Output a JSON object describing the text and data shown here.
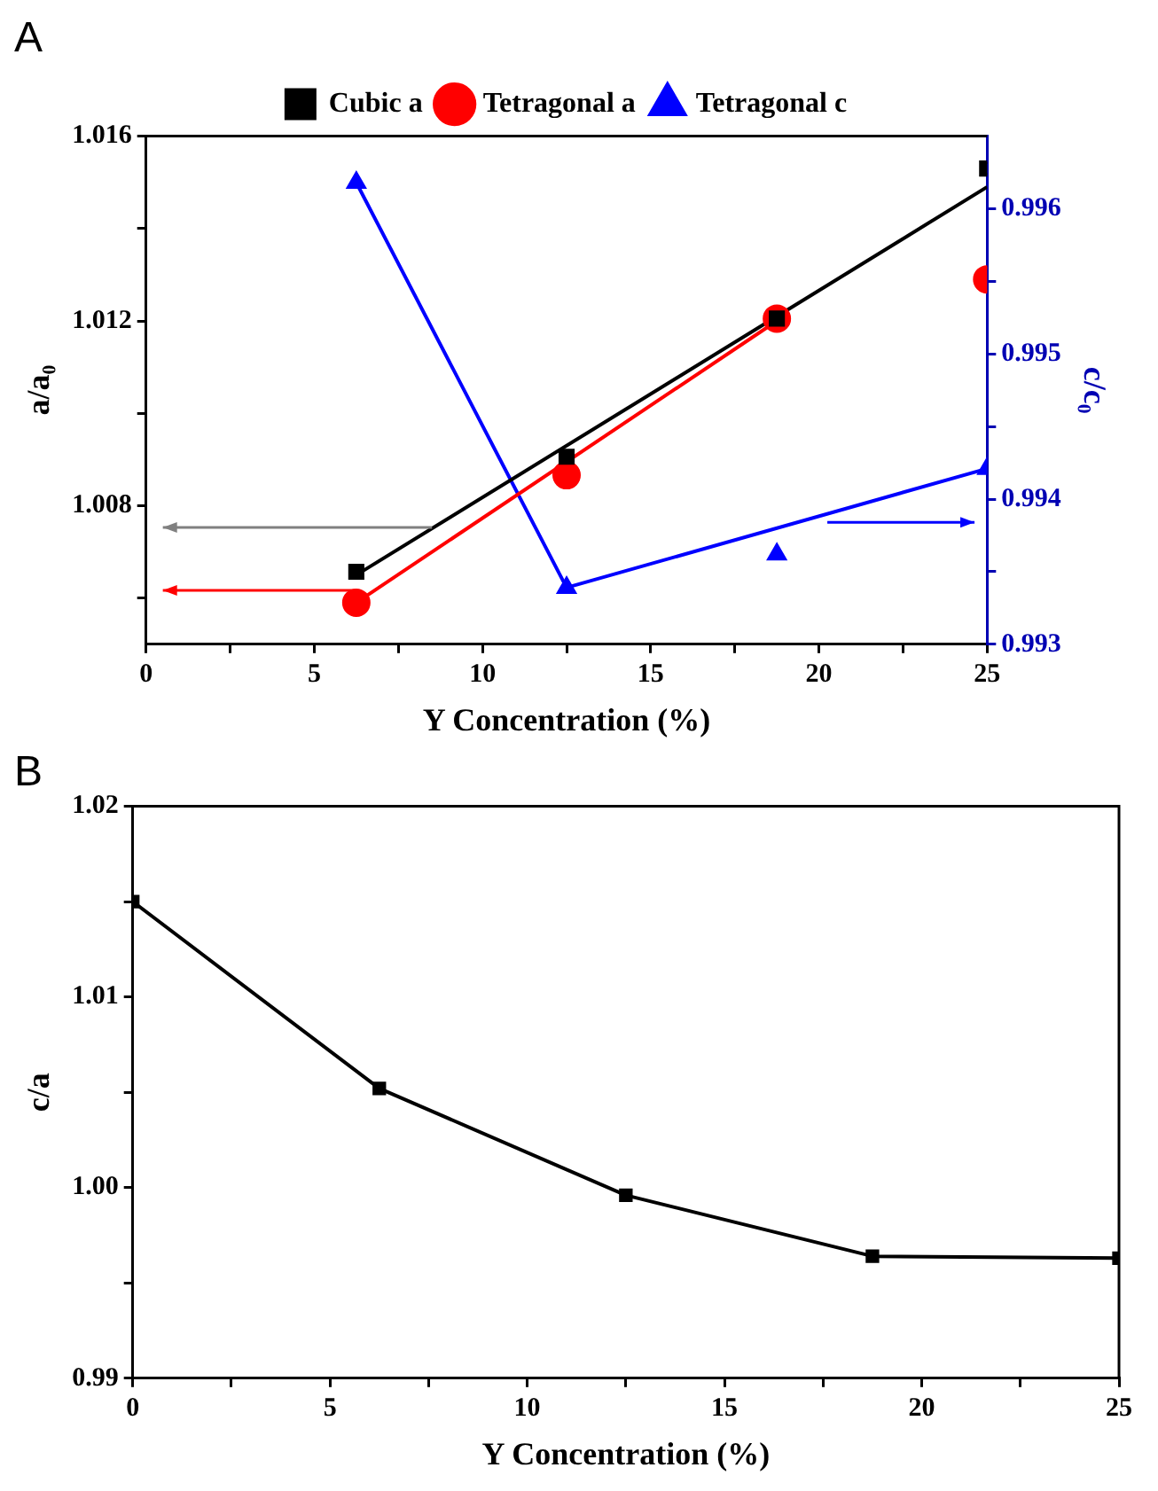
{
  "chart_data": [
    {
      "type": "scatter",
      "title": "A",
      "xlabel": "Y Concentration (%)",
      "ylabel": "a/a₀",
      "y2label": "c/c₀",
      "x": [
        6.25,
        12.5,
        18.75,
        25
      ],
      "xlim": [
        0,
        25
      ],
      "xticks": [
        0,
        {
          "value": 2.5,
          "label": null
        },
        5,
        {
          "value": 7.5,
          "label": null
        },
        10,
        {
          "value": 12.5,
          "label": null
        },
        15,
        {
          "value": 17.5,
          "label": null
        },
        20,
        {
          "value": 22.5,
          "label": null
        },
        25
      ],
      "ylim": [
        1.005,
        1.016
      ],
      "yticks": [
        {
          "value": 1.006,
          "label": null
        },
        1.008,
        {
          "value": 1.01,
          "label": null
        },
        1.012,
        {
          "value": 1.014,
          "label": null
        },
        1.016
      ],
      "y2lim": [
        0.993,
        0.9965
      ],
      "y2ticks": [
        0.993,
        {
          "value": 0.9935,
          "label": null
        },
        0.994,
        {
          "value": 0.9945,
          "label": null
        },
        0.995,
        {
          "value": 0.9955,
          "label": null
        },
        0.996
      ],
      "legend": "top",
      "grid": false,
      "series": [
        {
          "name": "Cubic a",
          "type": "scatter",
          "marker": "square",
          "color": "#000000",
          "values": [
            1.00657,
            1.00906,
            1.01205,
            1.0153
          ]
        },
        {
          "name": "Tetragonal a",
          "type": "scatter",
          "marker": "circle",
          "color": "#ff0000",
          "values": [
            1.0059,
            1.00866,
            1.01205,
            1.0129
          ]
        },
        {
          "name": "Tetragonal c",
          "type": "scatter",
          "marker": "triangle",
          "color": "#0000ff",
          "axis": "y2",
          "values": [
            0.99618,
            0.99339,
            0.99362,
            0.99421
          ]
        },
        {
          "type": "line",
          "marker": "none",
          "color": "#000000",
          "x": [
            6.25,
            25
          ],
          "values": [
            1.0065,
            1.0149
          ]
        },
        {
          "type": "line",
          "marker": "none",
          "color": "#ff0000",
          "x": [
            6.25,
            18.75
          ],
          "values": [
            1.0059,
            1.012
          ]
        },
        {
          "type": "line",
          "marker": "none",
          "color": "#0000ff",
          "axis": "y2",
          "x": [
            6.25,
            12.5,
            25
          ],
          "values": [
            0.99618,
            0.99339,
            0.99421
          ]
        }
      ]
    },
    {
      "type": "line",
      "title": "B",
      "xlabel": "Y Concentration (%)",
      "ylabel": "c/a",
      "x": [
        0,
        6.25,
        12.5,
        18.75,
        25
      ],
      "xlim": [
        0,
        25
      ],
      "xticks": [
        0,
        {
          "value": 2.5,
          "label": null
        },
        5,
        {
          "value": 7.5,
          "label": null
        },
        10,
        {
          "value": 12.5,
          "label": null
        },
        15,
        {
          "value": 17.5,
          "label": null
        },
        20,
        {
          "value": 22.5,
          "label": null
        },
        25
      ],
      "ylim": [
        0.99,
        1.02
      ],
      "yticks": [
        0.99,
        {
          "value": 0.995,
          "label": null
        },
        {
          "value": 1.0,
          "label": "1.00"
        },
        {
          "value": 1.005,
          "label": null
        },
        1.01,
        {
          "value": 1.015,
          "label": null
        },
        1.02
      ],
      "legend": false,
      "grid": false,
      "marker": "square",
      "series": [
        {
          "color": "#000000",
          "values": [
            1.015,
            1.0052,
            0.9996,
            0.9964,
            0.9963
          ]
        }
      ]
    }
  ]
}
